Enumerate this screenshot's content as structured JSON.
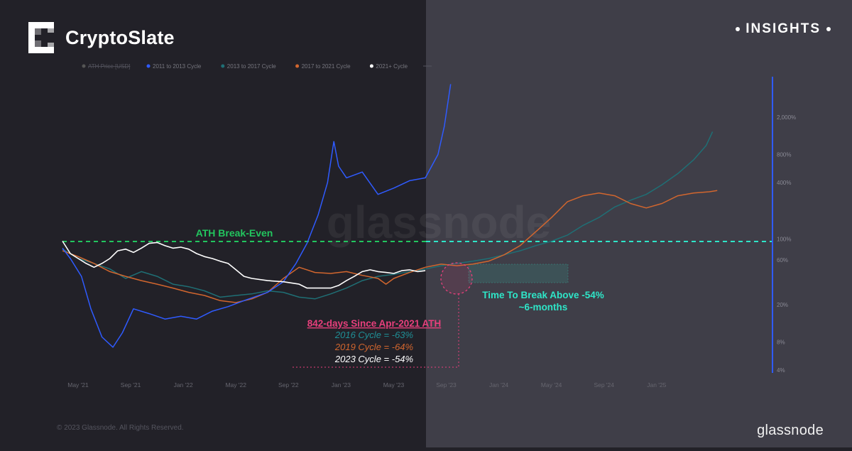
{
  "brand": {
    "name": "CryptoSlate",
    "logo_icon": "cryptoslate-logo-icon"
  },
  "badge": {
    "label": "INSIGHTS"
  },
  "watermark": "glassnode",
  "footer": {
    "copyright": "© 2023 Glassnode. All Rights Reserved.",
    "logo_text": "glassnode"
  },
  "colors": {
    "background_left": "#222128",
    "background_right": "#3f3e48",
    "cycle_2011": "#2f5bff",
    "cycle_2013": "#1f6f75",
    "cycle_2017": "#d2662e",
    "cycle_2021": "#ffffff",
    "ath_line": "#22c55e",
    "break_line": "#2ee6c8",
    "highlight": "#e83f7c",
    "annotation_teal": "#2ee6c8"
  },
  "chart_data": {
    "type": "line",
    "y_scale": "log",
    "y_ticks": [
      "2,000%",
      "800%",
      "400%",
      "100%",
      "60%",
      "20%",
      "8%",
      "4%"
    ],
    "x_ticks": [
      "May '21",
      "Sep '21",
      "Jan '22",
      "May '22",
      "Sep '22",
      "Jan '23",
      "May '23",
      "Sep '23",
      "Jan '24",
      "May '24",
      "Sep '24",
      "Jan '25"
    ],
    "legend": {
      "placement": "top-left",
      "items": [
        {
          "label": "ATH Price [USD]",
          "color": "#555555",
          "struck": true
        },
        {
          "label": "2011 to 2013 Cycle",
          "color": "#2f5bff"
        },
        {
          "label": "2013 to 2017 Cycle",
          "color": "#1f6f75"
        },
        {
          "label": "2017 to 2021 Cycle",
          "color": "#d2662e"
        },
        {
          "label": "2021+ Cycle",
          "color": "#ffffff"
        }
      ]
    },
    "series": [
      {
        "name": "2011 to 2013 Cycle",
        "color": "#2f5bff",
        "points": [
          [
            0,
            80
          ],
          [
            0.05,
            62
          ],
          [
            0.12,
            40
          ],
          [
            0.18,
            18
          ],
          [
            0.25,
            9
          ],
          [
            0.32,
            7
          ],
          [
            0.38,
            10
          ],
          [
            0.45,
            18
          ],
          [
            0.55,
            16
          ],
          [
            0.65,
            14
          ],
          [
            0.75,
            15
          ],
          [
            0.85,
            14
          ],
          [
            0.95,
            17
          ],
          [
            1.05,
            19
          ],
          [
            1.15,
            22
          ],
          [
            1.3,
            27
          ],
          [
            1.4,
            35
          ],
          [
            1.48,
            55
          ],
          [
            1.55,
            90
          ],
          [
            1.62,
            180
          ],
          [
            1.68,
            400
          ],
          [
            1.72,
            1100
          ],
          [
            1.75,
            600
          ],
          [
            1.8,
            450
          ],
          [
            1.9,
            520
          ],
          [
            2.0,
            300
          ],
          [
            2.1,
            350
          ],
          [
            2.2,
            420
          ],
          [
            2.3,
            450
          ],
          [
            2.38,
            800
          ],
          [
            2.42,
            1600
          ],
          [
            2.46,
            4500
          ]
        ],
        "end_label": "100%"
      },
      {
        "name": "2013 to 2017 Cycle",
        "color": "#1f6f75",
        "points": [
          [
            0,
            78
          ],
          [
            0.1,
            62
          ],
          [
            0.2,
            55
          ],
          [
            0.3,
            48
          ],
          [
            0.4,
            38
          ],
          [
            0.5,
            45
          ],
          [
            0.6,
            40
          ],
          [
            0.7,
            33
          ],
          [
            0.8,
            31
          ],
          [
            0.9,
            28
          ],
          [
            1.0,
            24
          ],
          [
            1.1,
            25
          ],
          [
            1.2,
            26
          ],
          [
            1.3,
            28
          ],
          [
            1.4,
            27
          ],
          [
            1.5,
            24
          ],
          [
            1.6,
            23
          ],
          [
            1.7,
            26
          ],
          [
            1.8,
            30
          ],
          [
            1.9,
            36
          ],
          [
            2.0,
            40
          ],
          [
            2.1,
            42
          ],
          [
            2.2,
            45
          ],
          [
            2.3,
            48
          ],
          [
            2.4,
            52
          ],
          [
            2.5,
            55
          ],
          [
            2.6,
            58
          ],
          [
            2.7,
            62
          ],
          [
            2.8,
            68
          ],
          [
            2.9,
            75
          ],
          [
            3.0,
            85
          ],
          [
            3.1,
            95
          ],
          [
            3.2,
            110
          ],
          [
            3.3,
            140
          ],
          [
            3.4,
            170
          ],
          [
            3.5,
            220
          ],
          [
            3.6,
            260
          ],
          [
            3.7,
            300
          ],
          [
            3.8,
            380
          ],
          [
            3.9,
            500
          ],
          [
            4.0,
            700
          ],
          [
            4.08,
            1000
          ],
          [
            4.12,
            1400
          ]
        ]
      },
      {
        "name": "2017 to 2021 Cycle",
        "color": "#d2662e",
        "points": [
          [
            0,
            75
          ],
          [
            0.1,
            65
          ],
          [
            0.2,
            55
          ],
          [
            0.3,
            45
          ],
          [
            0.4,
            40
          ],
          [
            0.5,
            36
          ],
          [
            0.6,
            33
          ],
          [
            0.7,
            30
          ],
          [
            0.8,
            27
          ],
          [
            0.9,
            25
          ],
          [
            1.0,
            22
          ],
          [
            1.1,
            21
          ],
          [
            1.2,
            23
          ],
          [
            1.3,
            27
          ],
          [
            1.4,
            38
          ],
          [
            1.5,
            50
          ],
          [
            1.6,
            44
          ],
          [
            1.7,
            43
          ],
          [
            1.8,
            45
          ],
          [
            1.9,
            41
          ],
          [
            2.0,
            38
          ],
          [
            2.05,
            33
          ],
          [
            2.1,
            38
          ],
          [
            2.2,
            44
          ],
          [
            2.3,
            50
          ],
          [
            2.4,
            54
          ],
          [
            2.5,
            52
          ],
          [
            2.6,
            54
          ],
          [
            2.7,
            58
          ],
          [
            2.8,
            68
          ],
          [
            2.9,
            85
          ],
          [
            3.0,
            120
          ],
          [
            3.1,
            170
          ],
          [
            3.2,
            250
          ],
          [
            3.3,
            290
          ],
          [
            3.4,
            310
          ],
          [
            3.5,
            290
          ],
          [
            3.6,
            240
          ],
          [
            3.7,
            215
          ],
          [
            3.8,
            240
          ],
          [
            3.9,
            290
          ],
          [
            4.0,
            310
          ],
          [
            4.1,
            320
          ],
          [
            4.15,
            330
          ]
        ]
      },
      {
        "name": "2021+ Cycle",
        "color": "#ffffff",
        "points": [
          [
            0,
            95
          ],
          [
            0.05,
            70
          ],
          [
            0.1,
            62
          ],
          [
            0.15,
            55
          ],
          [
            0.2,
            50
          ],
          [
            0.25,
            55
          ],
          [
            0.3,
            62
          ],
          [
            0.35,
            75
          ],
          [
            0.4,
            78
          ],
          [
            0.45,
            72
          ],
          [
            0.5,
            80
          ],
          [
            0.55,
            90
          ],
          [
            0.6,
            92
          ],
          [
            0.65,
            85
          ],
          [
            0.7,
            80
          ],
          [
            0.75,
            82
          ],
          [
            0.8,
            78
          ],
          [
            0.85,
            70
          ],
          [
            0.9,
            65
          ],
          [
            0.95,
            62
          ],
          [
            1.0,
            58
          ],
          [
            1.05,
            55
          ],
          [
            1.1,
            47
          ],
          [
            1.15,
            40
          ],
          [
            1.2,
            38
          ],
          [
            1.3,
            36
          ],
          [
            1.4,
            35
          ],
          [
            1.5,
            33
          ],
          [
            1.55,
            30
          ],
          [
            1.6,
            30
          ],
          [
            1.7,
            30
          ],
          [
            1.75,
            32
          ],
          [
            1.8,
            36
          ],
          [
            1.85,
            40
          ],
          [
            1.9,
            45
          ],
          [
            1.95,
            47
          ],
          [
            2.0,
            45
          ],
          [
            2.05,
            44
          ],
          [
            2.1,
            43
          ],
          [
            2.15,
            46
          ],
          [
            2.2,
            47
          ],
          [
            2.25,
            45
          ],
          [
            2.3,
            46
          ]
        ]
      }
    ],
    "reference_lines": [
      {
        "label": "ATH Break-Even",
        "value_pct": 100,
        "color": "#22c55e"
      },
      {
        "label": "",
        "value_pct": 100,
        "color": "#2ee6c8",
        "style": "dashed"
      }
    ],
    "annotations": {
      "ath_label": "ATH Break-Even",
      "break_title": "Time To Break Above -54%",
      "break_sub": "~6-months",
      "days_label": "842-days Since Apr-2021 ATH",
      "cycle_2016": "2016 Cycle = -63%",
      "cycle_2019": "2019 Cycle = -64%",
      "cycle_2023": "2023 Cycle = -54%"
    }
  }
}
